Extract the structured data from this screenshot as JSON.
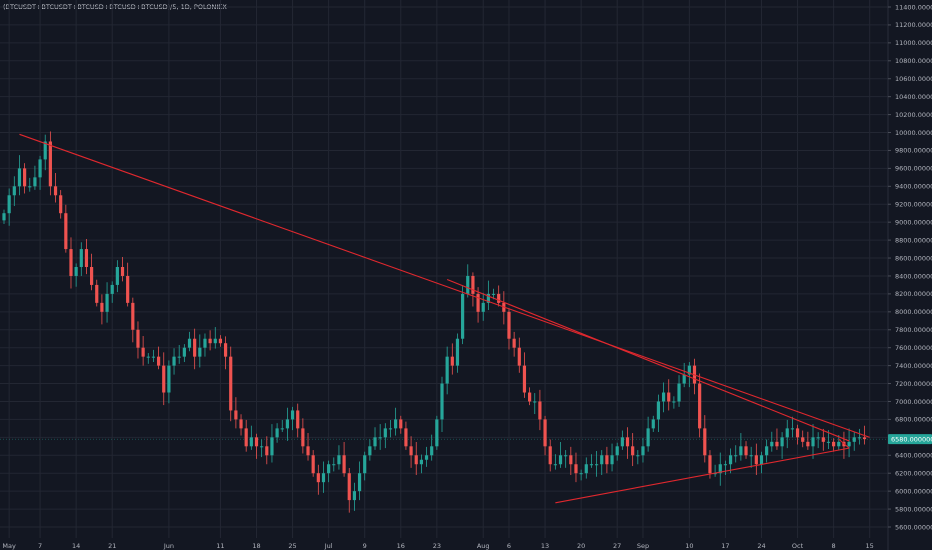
{
  "symbol_label": "(BTCUSDT+BTCUSDT+BTCUSD+BTCUSD+BTCUSD)/5, 1D, POLONIEX",
  "colors": {
    "background": "#131722",
    "grid": "#232733",
    "up": "#26a69a",
    "down": "#ef5350",
    "trendline": "#e0282e",
    "price_badge": "#26a69a",
    "axis_text": "#b2b5be"
  },
  "current_price_label": "6580.00000000",
  "chart_data": {
    "type": "candlestick",
    "title": "",
    "y_axis": {
      "ticks": [
        "11400.00000000",
        "11200.00000000",
        "11000.00000000",
        "10800.00000000",
        "10600.00000000",
        "10400.00000000",
        "10200.00000000",
        "10000.00000000",
        "9800.00000000",
        "9600.00000000",
        "9400.00000000",
        "9200.00000000",
        "9000.00000000",
        "8800.00000000",
        "8600.00000000",
        "8400.00000000",
        "8200.00000000",
        "8000.00000000",
        "7800.00000000",
        "7600.00000000",
        "7400.00000000",
        "7200.00000000",
        "7000.00000000",
        "6800.00000000",
        "6600.00000000",
        "6400.00000000",
        "6200.00000000",
        "6000.00000000",
        "5800.00000000",
        "5600.00000000"
      ],
      "range": [
        5480,
        11520
      ]
    },
    "x_axis": {
      "range": [
        "2018-04-30",
        "2018-10-17"
      ],
      "ticks": [
        {
          "date": "2018-05-01",
          "label": "May"
        },
        {
          "date": "2018-05-07",
          "label": "7"
        },
        {
          "date": "2018-05-14",
          "label": "14"
        },
        {
          "date": "2018-05-21",
          "label": "21"
        },
        {
          "date": "2018-06-01",
          "label": "Jun"
        },
        {
          "date": "2018-06-11",
          "label": "11"
        },
        {
          "date": "2018-06-18",
          "label": "18"
        },
        {
          "date": "2018-06-25",
          "label": "25"
        },
        {
          "date": "2018-07-02",
          "label": "Jul"
        },
        {
          "date": "2018-07-09",
          "label": "9"
        },
        {
          "date": "2018-07-16",
          "label": "16"
        },
        {
          "date": "2018-07-23",
          "label": "23"
        },
        {
          "date": "2018-08-01",
          "label": "Aug"
        },
        {
          "date": "2018-08-06",
          "label": "6"
        },
        {
          "date": "2018-08-13",
          "label": "13"
        },
        {
          "date": "2018-08-20",
          "label": "20"
        },
        {
          "date": "2018-08-27",
          "label": "27"
        },
        {
          "date": "2018-09-01",
          "label": "Sep"
        },
        {
          "date": "2018-09-10",
          "label": "10"
        },
        {
          "date": "2018-09-17",
          "label": "17"
        },
        {
          "date": "2018-09-24",
          "label": "24"
        },
        {
          "date": "2018-10-01",
          "label": "Oct"
        },
        {
          "date": "2018-10-08",
          "label": "8"
        },
        {
          "date": "2018-10-15",
          "label": "15"
        }
      ]
    },
    "candles_start_date": "2018-04-30",
    "closes": [
      9100,
      9300,
      9400,
      9600,
      9400,
      9400,
      9500,
      9700,
      9900,
      9400,
      9300,
      9100,
      8700,
      8400,
      8500,
      8700,
      8500,
      8300,
      8100,
      8000,
      8200,
      8300,
      8500,
      8400,
      8100,
      7800,
      7600,
      7500,
      7500,
      7500,
      7400,
      7100,
      7400,
      7500,
      7500,
      7600,
      7700,
      7500,
      7600,
      7700,
      7650,
      7700,
      7650,
      7500,
      6900,
      6800,
      6700,
      6500,
      6600,
      6500,
      6500,
      6400,
      6600,
      6700,
      6700,
      6800,
      6900,
      6700,
      6500,
      6400,
      6200,
      6100,
      6200,
      6300,
      6300,
      6400,
      6200,
      5900,
      6000,
      6200,
      6400,
      6500,
      6600,
      6600,
      6700,
      6700,
      6800,
      6700,
      6500,
      6400,
      6300,
      6350,
      6400,
      6500,
      6800,
      7200,
      7500,
      7400,
      7700,
      8200,
      8400,
      8200,
      8000,
      8100,
      8200,
      8200,
      8100,
      8000,
      7700,
      7600,
      7400,
      7100,
      7000,
      7000,
      6800,
      6500,
      6300,
      6300,
      6400,
      6400,
      6300,
      6200,
      6200,
      6300,
      6300,
      6300,
      6400,
      6300,
      6400,
      6500,
      6600,
      6500,
      6400,
      6400,
      6500,
      6700,
      6800,
      7000,
      7100,
      7000,
      7000,
      7200,
      7300,
      7400,
      7200,
      6700,
      6400,
      6200,
      6200,
      6300,
      6300,
      6400,
      6400,
      6500,
      6400,
      6400,
      6300,
      6400,
      6500,
      6550,
      6500,
      6600,
      6700,
      6700,
      6600,
      6550,
      6500,
      6600,
      6600,
      6550,
      6550,
      6500,
      6550,
      6500,
      6550,
      6600,
      6600,
      6580
    ],
    "trendlines": [
      {
        "name": "",
        "from": [
          "2018-05-03",
          9980
        ],
        "to": [
          "2018-10-15",
          6600
        ]
      },
      {
        "name": "",
        "from": [
          "2018-07-25",
          8360
        ],
        "to": [
          "2018-10-11",
          6560
        ]
      },
      {
        "name": "",
        "from": [
          "2018-08-15",
          5870
        ],
        "to": [
          "2018-10-11",
          6480
        ]
      },
      {
        "name": "",
        "from": [
          "2018-10-09",
          6580
        ],
        "to": [
          "2018-10-11",
          6480
        ]
      }
    ],
    "grid": true
  }
}
